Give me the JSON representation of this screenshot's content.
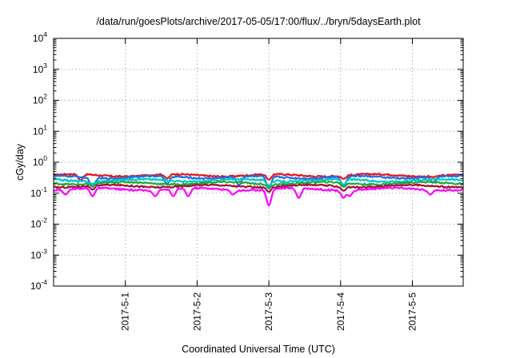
{
  "chart_data": {
    "type": "line",
    "title": "/data/run/goesPlots/archive/2017-05-05/17:00/flux/../bryn/5daysEarth.plot",
    "xlabel": "Coordinated Universal Time (UTC)",
    "ylabel": "cGy/day",
    "y_scale": "log",
    "ylim": [
      0.0001,
      10000
    ],
    "x_range": [
      "2017-04-30 00:00",
      "2017-05-05 17:00"
    ],
    "grid": true,
    "x_ticks": [
      {
        "date": "2017-05-01",
        "label": "2017-5-1"
      },
      {
        "date": "2017-05-02",
        "label": "2017-5-2"
      },
      {
        "date": "2017-05-03",
        "label": "2017-5-3"
      },
      {
        "date": "2017-05-04",
        "label": "2017-5-4"
      },
      {
        "date": "2017-05-05",
        "label": "2017-5-5"
      }
    ],
    "y_ticks": [
      {
        "value": 0.0001,
        "base": "10",
        "exp": "-4"
      },
      {
        "value": 0.001,
        "base": "10",
        "exp": "-3"
      },
      {
        "value": 0.01,
        "base": "10",
        "exp": "-2"
      },
      {
        "value": 0.1,
        "base": "10",
        "exp": "-1"
      },
      {
        "value": 1,
        "base": "10",
        "exp": "0"
      },
      {
        "value": 10,
        "base": "10",
        "exp": "1"
      },
      {
        "value": 100,
        "base": "10",
        "exp": "2"
      },
      {
        "value": 1000,
        "base": "10",
        "exp": "3"
      },
      {
        "value": 10000,
        "base": "10",
        "exp": "4"
      }
    ],
    "series": [
      {
        "color": "#e8141c",
        "base": 0.38,
        "dips": [
          [
            "2017-04-30 09:00",
            0.26
          ],
          [
            "2017-05-01 14:00",
            0.3
          ],
          [
            "2017-05-03 00:00",
            0.27
          ],
          [
            "2017-05-04 01:00",
            0.29
          ],
          [
            "2017-05-05 07:00",
            0.33
          ]
        ]
      },
      {
        "color": "#1e6fe6",
        "base": 0.33,
        "dips": [
          [
            "2017-04-30 13:00",
            0.16
          ],
          [
            "2017-05-01 14:00",
            0.2
          ],
          [
            "2017-05-02 14:00",
            0.18
          ],
          [
            "2017-05-03 00:00",
            0.14
          ],
          [
            "2017-05-04 01:00",
            0.16
          ],
          [
            "2017-05-05 07:00",
            0.22
          ]
        ]
      },
      {
        "color": "#00c8c8",
        "base": 0.26,
        "dips": [
          [
            "2017-04-30 13:00",
            0.2
          ],
          [
            "2017-05-03 00:00",
            0.18
          ],
          [
            "2017-05-04 01:00",
            0.19
          ]
        ]
      },
      {
        "color": "#22a83a",
        "base": 0.21,
        "dips": [
          [
            "2017-04-30 13:00",
            0.17
          ],
          [
            "2017-05-03 00:00",
            0.15
          ],
          [
            "2017-05-04 01:00",
            0.16
          ]
        ]
      },
      {
        "color": "#a0103a",
        "base": 0.17,
        "dips": [
          [
            "2017-04-30 13:00",
            0.13
          ],
          [
            "2017-05-03 00:00",
            0.11
          ],
          [
            "2017-05-04 01:00",
            0.12
          ]
        ]
      },
      {
        "color": "#ff00ff",
        "base": 0.135,
        "dips": [
          [
            "2017-04-30 04:00",
            0.09
          ],
          [
            "2017-04-30 13:00",
            0.08
          ],
          [
            "2017-05-01 10:00",
            0.08
          ],
          [
            "2017-05-01 16:00",
            0.08
          ],
          [
            "2017-05-01 21:00",
            0.08
          ],
          [
            "2017-05-02 12:00",
            0.09
          ],
          [
            "2017-05-03 00:00",
            0.04
          ],
          [
            "2017-05-03 10:00",
            0.07
          ],
          [
            "2017-05-04 01:00",
            0.07
          ],
          [
            "2017-05-04 03:00",
            0.08
          ],
          [
            "2017-05-05 06:00",
            0.09
          ]
        ]
      }
    ]
  }
}
